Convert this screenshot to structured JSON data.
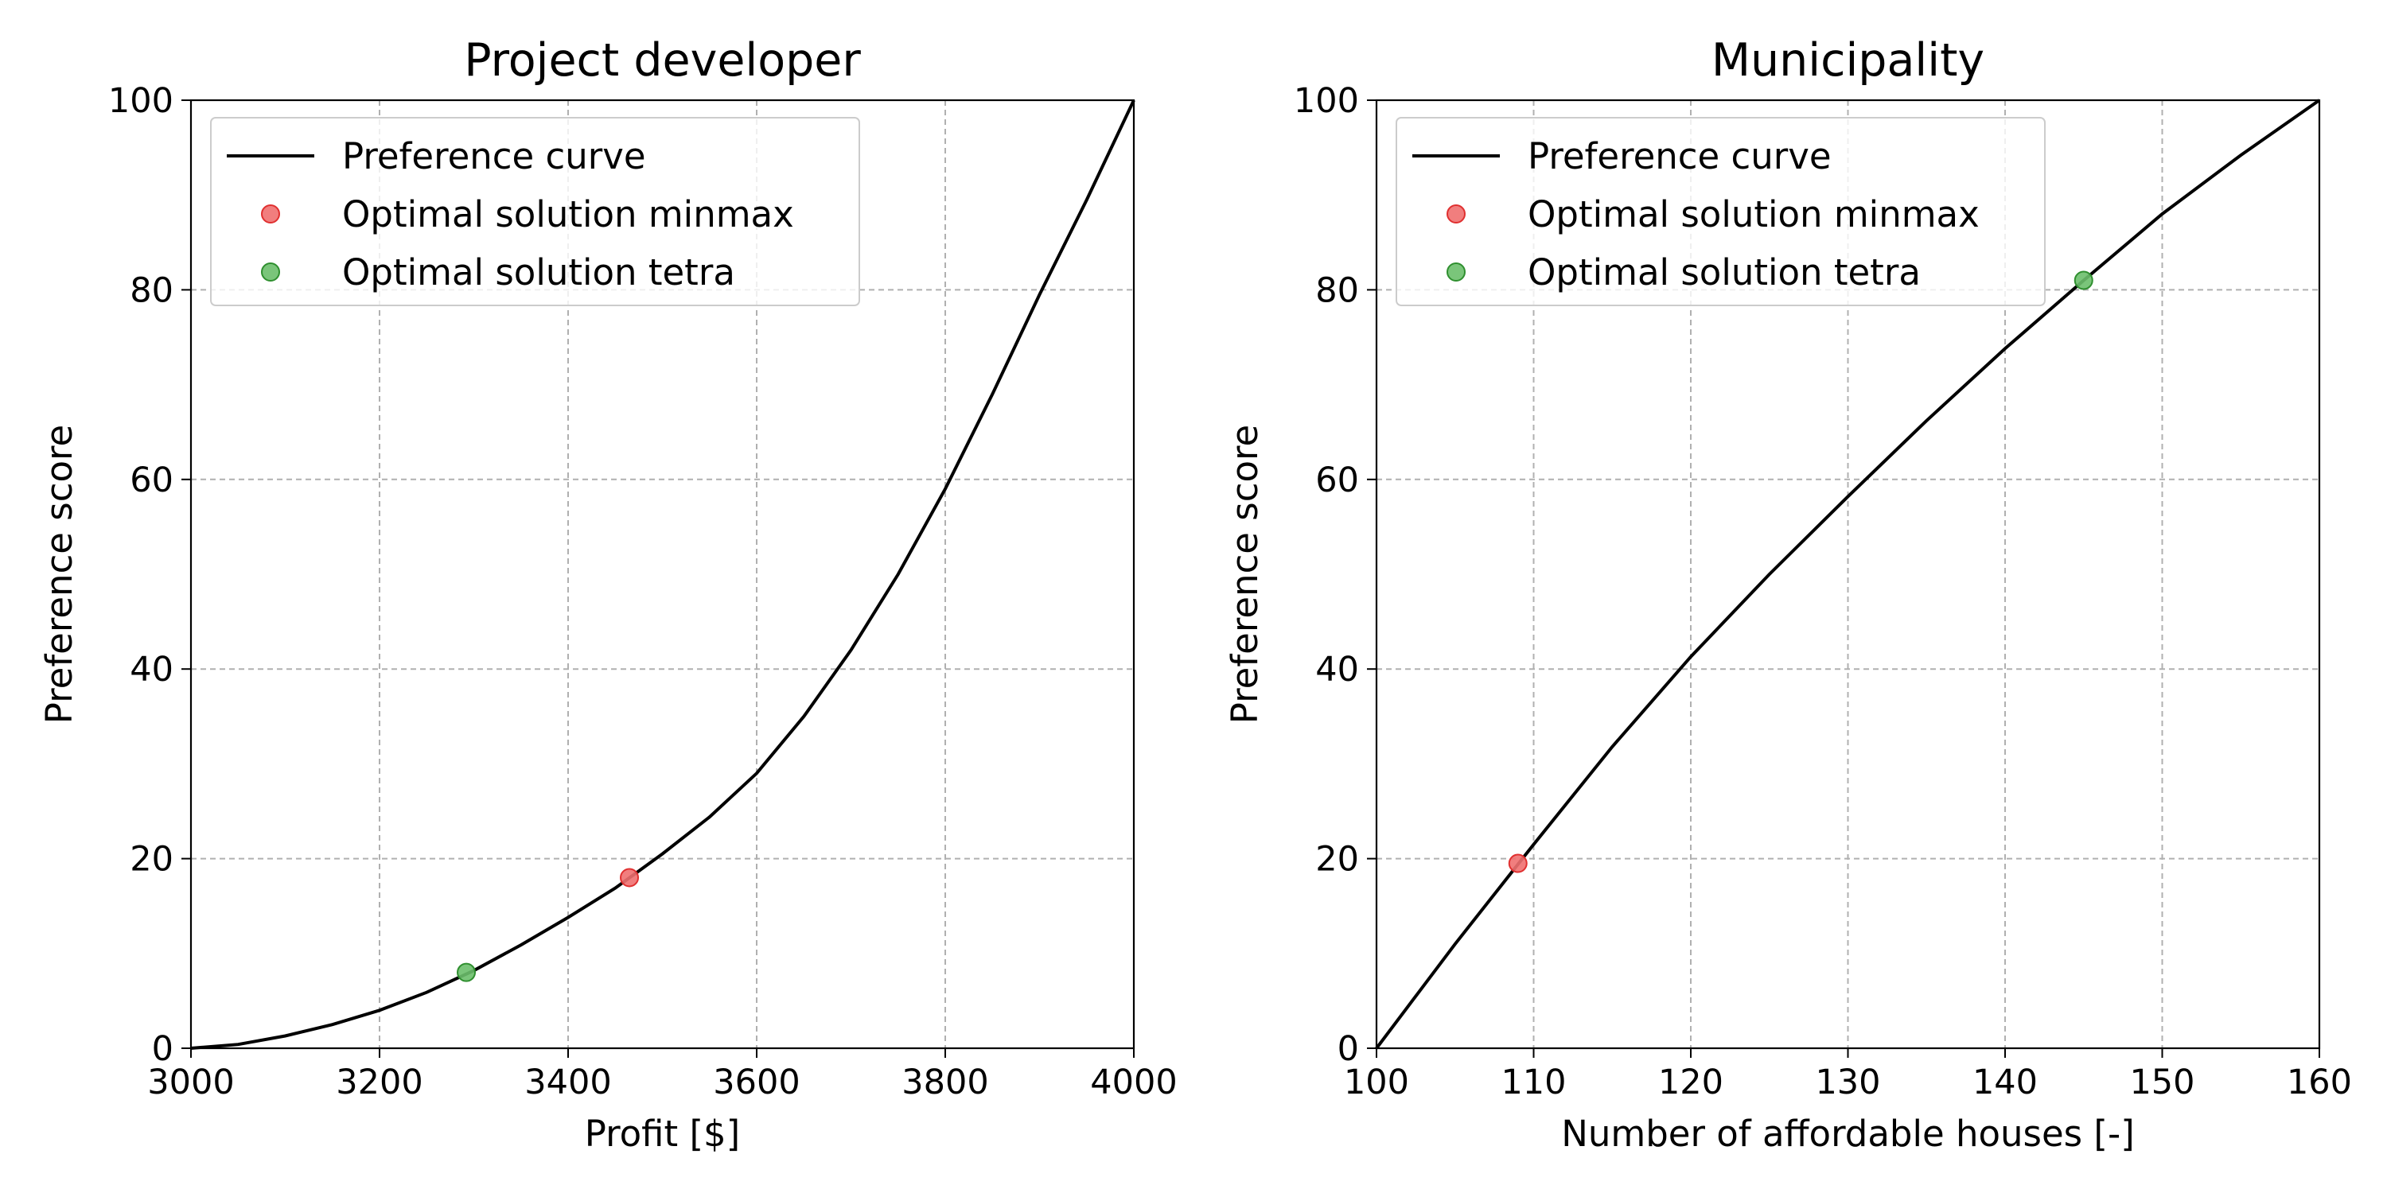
{
  "chart_data": [
    {
      "type": "line",
      "title": "Project developer",
      "xlabel": "Profit [$]",
      "ylabel": "Preference score",
      "xlim": [
        3000,
        4000
      ],
      "ylim": [
        0,
        100
      ],
      "xticks": [
        "3000",
        "3200",
        "3400",
        "3600",
        "3800",
        "4000"
      ],
      "yticks": [
        "0",
        "20",
        "40",
        "60",
        "80",
        "100"
      ],
      "grid": true,
      "legend_position": "upper-left",
      "series": [
        {
          "name": "Preference curve",
          "kind": "line",
          "color": "#000000",
          "x": [
            3000,
            3050,
            3100,
            3150,
            3200,
            3250,
            3300,
            3350,
            3400,
            3450,
            3500,
            3550,
            3600,
            3650,
            3700,
            3750,
            3800,
            3850,
            3900,
            3950,
            4000
          ],
          "y": [
            0,
            0.4,
            1.3,
            2.5,
            4.0,
            5.9,
            8.2,
            10.9,
            13.8,
            16.9,
            20.5,
            24.4,
            29.0,
            35.0,
            42.0,
            50.0,
            59.0,
            69.0,
            79.5,
            89.5,
            100
          ]
        },
        {
          "name": "Optimal solution minmax",
          "kind": "scatter",
          "color": "#f07070",
          "edge": "#e03030",
          "x": [
            3465
          ],
          "y": [
            18
          ]
        },
        {
          "name": "Optimal solution tetra",
          "kind": "scatter",
          "color": "#6bbf6b",
          "edge": "#2f8f2f",
          "x": [
            3292
          ],
          "y": [
            8
          ]
        }
      ]
    },
    {
      "type": "line",
      "title": "Municipality",
      "xlabel": "Number of affordable houses [-]",
      "ylabel": "Preference score",
      "xlim": [
        100,
        160
      ],
      "ylim": [
        0,
        100
      ],
      "xticks": [
        "100",
        "110",
        "120",
        "130",
        "140",
        "150",
        "160"
      ],
      "yticks": [
        "0",
        "20",
        "40",
        "60",
        "80",
        "100"
      ],
      "grid": true,
      "legend_position": "upper-left",
      "series": [
        {
          "name": "Preference curve",
          "kind": "line",
          "color": "#000000",
          "x": [
            100,
            105,
            110,
            115,
            120,
            125,
            130,
            135,
            140,
            145,
            150,
            155,
            160
          ],
          "y": [
            0,
            11.0,
            21.5,
            31.8,
            41.3,
            50.0,
            58.2,
            66.2,
            73.8,
            81.0,
            88.0,
            94.2,
            100
          ]
        },
        {
          "name": "Optimal solution minmax",
          "kind": "scatter",
          "color": "#f07070",
          "edge": "#e03030",
          "x": [
            109
          ],
          "y": [
            19.5
          ]
        },
        {
          "name": "Optimal solution tetra",
          "kind": "scatter",
          "color": "#6bbf6b",
          "edge": "#2f8f2f",
          "x": [
            145
          ],
          "y": [
            81
          ]
        }
      ]
    }
  ]
}
